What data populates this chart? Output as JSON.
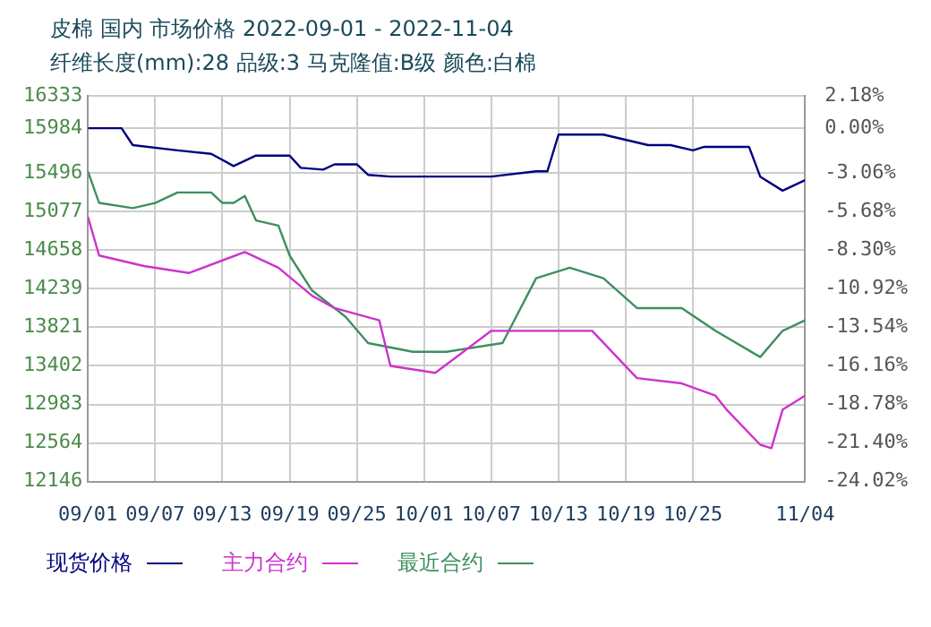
{
  "chart_data": {
    "type": "line",
    "title": "皮棉 国内 市场价格 2022-09-01 - 2022-11-04",
    "subtitle": "纤维长度(mm):28 品级:3 马克隆值:B级 颜色:白棉",
    "xlim": [
      "--09-01",
      "--11-04"
    ],
    "xticks": [
      {
        "value": "--09-01",
        "label": "09/01"
      },
      {
        "value": "--09-07",
        "label": "09/07"
      },
      {
        "value": "--09-13",
        "label": "09/13"
      },
      {
        "value": "--09-19",
        "label": "09/19"
      },
      {
        "value": "--09-25",
        "label": "09/25"
      },
      {
        "value": "--10-01",
        "label": "10/01"
      },
      {
        "value": "--10-07",
        "label": "10/07"
      },
      {
        "value": "--10-13",
        "label": "10/13"
      },
      {
        "value": "--10-19",
        "label": "10/19"
      },
      {
        "value": "--10-25",
        "label": "10/25"
      },
      {
        "value": "--11-04",
        "label": "11/04"
      }
    ],
    "ylim": [
      12146,
      16333
    ],
    "yticks": [
      12146,
      12564,
      12983,
      13402,
      13821,
      14239,
      14658,
      15077,
      15496,
      15984,
      16333
    ],
    "y2lim": [
      -24.02,
      2.18
    ],
    "y2ticks": [
      {
        "value": -24.02,
        "label": "-24.02%"
      },
      {
        "value": -21.4,
        "label": "-21.40%"
      },
      {
        "value": -18.78,
        "label": "-18.78%"
      },
      {
        "value": -16.16,
        "label": "-16.16%"
      },
      {
        "value": -13.54,
        "label": "-13.54%"
      },
      {
        "value": -10.92,
        "label": "-10.92%"
      },
      {
        "value": -8.3,
        "label": "-8.30%"
      },
      {
        "value": -5.68,
        "label": "-5.68%"
      },
      {
        "value": -3.06,
        "label": "-3.06%"
      },
      {
        "value": 0,
        "label": "0.00%"
      },
      {
        "value": 2.18,
        "label": "2.18%"
      }
    ],
    "grid": true,
    "legend": "bottom",
    "marker": "none",
    "line_style": "solid",
    "series": [
      {
        "name": "现货价格",
        "color": "#000080",
        "x": [
          "--09-01",
          "--09-04",
          "--09-05",
          "--09-09",
          "--09-12",
          "--09-14",
          "--09-16",
          "--09-19",
          "--09-20",
          "--09-22",
          "--09-23",
          "--09-25",
          "--09-26",
          "--09-28",
          "--10-07",
          "--10-11",
          "--10-12",
          "--10-13",
          "--10-17",
          "--10-21",
          "--10-23",
          "--10-25",
          "--10-26",
          "--10-30",
          "--10-31",
          "--11-02",
          "--11-04"
        ],
        "values": [
          15984,
          15984,
          15800,
          15743,
          15705,
          15572,
          15686,
          15686,
          15553,
          15534,
          15591,
          15591,
          15477,
          15458,
          15458,
          15515,
          15515,
          15914,
          15914,
          15800,
          15800,
          15743,
          15781,
          15781,
          15458,
          15305,
          15420
        ]
      },
      {
        "name": "主力合约",
        "color": "#cc33cc",
        "x": [
          "--09-01",
          "--09-02",
          "--09-06",
          "--09-10",
          "--09-15",
          "--09-18",
          "--09-21",
          "--09-23",
          "--09-27",
          "--09-28",
          "--10-02",
          "--10-07",
          "--10-16",
          "--10-20",
          "--10-24",
          "--10-27",
          "--10-28",
          "--10-31",
          "--11-01",
          "--11-02",
          "--11-04"
        ],
        "values": [
          15020,
          14601,
          14487,
          14411,
          14639,
          14468,
          14164,
          14030,
          13897,
          13402,
          13326,
          13783,
          13783,
          13269,
          13212,
          13079,
          12927,
          12546,
          12508,
          12927,
          13079
        ]
      },
      {
        "name": "最近合约",
        "color": "#3f8f5f",
        "x": [
          "--09-01",
          "--09-02",
          "--09-05",
          "--09-07",
          "--09-09",
          "--09-12",
          "--09-13",
          "--09-14",
          "--09-15",
          "--09-16",
          "--09-18",
          "--09-19",
          "--09-21",
          "--09-24",
          "--09-26",
          "--09-30",
          "--10-03",
          "--10-08",
          "--10-11",
          "--10-14",
          "--10-17",
          "--10-20",
          "--10-24",
          "--10-27",
          "--10-31",
          "--11-02",
          "--11-04"
        ],
        "values": [
          15515,
          15172,
          15115,
          15172,
          15286,
          15286,
          15172,
          15172,
          15248,
          14982,
          14925,
          14601,
          14221,
          13935,
          13650,
          13555,
          13555,
          13650,
          14354,
          14468,
          14354,
          14030,
          14030,
          13783,
          13498,
          13783,
          13897
        ]
      }
    ]
  }
}
